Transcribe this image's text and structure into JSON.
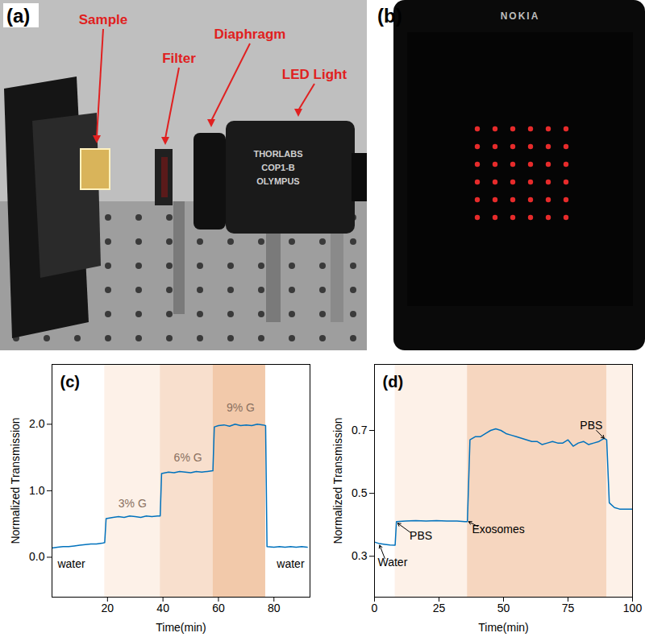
{
  "photos": [
    {
      "label": "(a)",
      "callouts": [
        "Sample",
        "Filter",
        "Diaphragm",
        "LED Light"
      ],
      "printed": [
        "THORLABS",
        "COP1-B",
        "OLYMPUS"
      ]
    },
    {
      "label": "(b)",
      "printed": [
        "NOKIA"
      ]
    }
  ],
  "chart_data": [
    {
      "type": "line",
      "title": "(c)",
      "x_label": "Time(min)",
      "y_label": "Normalized Transmission",
      "color": "#0072bd",
      "xlim": [
        0,
        93
      ],
      "xticks": [
        20,
        40,
        60,
        80
      ],
      "ylim": [
        -0.6,
        2.9
      ],
      "yticks": [
        0,
        1,
        2
      ],
      "regions": [
        {
          "x0": 19,
          "x1": 39,
          "color": "#fdf1e8"
        },
        {
          "x0": 39,
          "x1": 58,
          "color": "#f8dfcd"
        },
        {
          "x0": 58,
          "x1": 77,
          "color": "#f2c9aa"
        }
      ],
      "annotations": [
        {
          "text": "water",
          "x": 7,
          "y": -0.1
        },
        {
          "text": "3% G",
          "x": 29,
          "y": 0.8
        },
        {
          "text": "6% G",
          "x": 49,
          "y": 1.5
        },
        {
          "text": "9% G",
          "x": 68,
          "y": 2.25
        },
        {
          "text": "water",
          "x": 86,
          "y": -0.1
        }
      ],
      "x": [
        0,
        2,
        4,
        6,
        8,
        10,
        12,
        14,
        16,
        18,
        19,
        19.5,
        22,
        24,
        26,
        28,
        30,
        32,
        34,
        36,
        38,
        39,
        39.5,
        42,
        44,
        46,
        48,
        50,
        52,
        54,
        56,
        58,
        58.5,
        60,
        62,
        64,
        66,
        68,
        70,
        72,
        74,
        76,
        77,
        77.5,
        80,
        82,
        84,
        86,
        88,
        90,
        92
      ],
      "values": [
        0.14,
        0.15,
        0.16,
        0.16,
        0.17,
        0.18,
        0.19,
        0.2,
        0.2,
        0.21,
        0.22,
        0.58,
        0.6,
        0.61,
        0.6,
        0.62,
        0.61,
        0.6,
        0.62,
        0.61,
        0.62,
        0.62,
        1.26,
        1.28,
        1.27,
        1.29,
        1.28,
        1.27,
        1.29,
        1.28,
        1.29,
        1.3,
        1.96,
        1.98,
        1.99,
        1.97,
        2.0,
        1.98,
        1.99,
        1.98,
        2.0,
        1.99,
        1.98,
        0.16,
        0.15,
        0.16,
        0.15,
        0.16,
        0.15,
        0.16,
        0.15
      ]
    },
    {
      "type": "line",
      "title": "(d)",
      "x_label": "Time(min)",
      "y_label": "Normalized Transmission",
      "color": "#0072bd",
      "xlim": [
        0,
        100
      ],
      "xticks": [
        0,
        25,
        50,
        75,
        100
      ],
      "ylim": [
        0.17,
        0.91
      ],
      "yticks": [
        0.3,
        0.5,
        0.7
      ],
      "regions": [
        {
          "x0": 8,
          "x1": 36,
          "color": "#fdf1e8"
        },
        {
          "x0": 36,
          "x1": 90,
          "color": "#f6d6bf"
        },
        {
          "x0": 90,
          "x1": 100,
          "color": "#fdf1e8"
        }
      ],
      "annotations": [
        {
          "text": "Water",
          "x": 7,
          "y": 0.28,
          "arrow": {
            "x1": 4,
            "y1": 0.293,
            "x2": 2,
            "y2": 0.335
          }
        },
        {
          "text": "PBS",
          "x": 18,
          "y": 0.365,
          "arrow": {
            "x1": 14,
            "y1": 0.375,
            "x2": 9,
            "y2": 0.405
          }
        },
        {
          "text": "Exosomes",
          "x": 48,
          "y": 0.385,
          "arrow": {
            "x1": 40,
            "y1": 0.395,
            "x2": 36.5,
            "y2": 0.41
          }
        },
        {
          "text": "PBS",
          "x": 84,
          "y": 0.715,
          "arrow": {
            "x1": 86,
            "y1": 0.7,
            "x2": 89,
            "y2": 0.675
          }
        }
      ],
      "x": [
        0,
        2,
        4,
        6,
        8,
        8.5,
        12,
        16,
        20,
        24,
        28,
        32,
        35,
        36,
        37,
        39,
        41,
        43,
        45,
        47,
        49,
        51,
        53,
        55,
        57,
        59,
        61,
        63,
        65,
        67,
        69,
        71,
        73,
        75,
        77,
        79,
        81,
        83,
        85,
        87,
        89,
        90,
        91,
        93,
        95,
        97,
        100
      ],
      "values": [
        0.345,
        0.34,
        0.338,
        0.336,
        0.335,
        0.41,
        0.412,
        0.413,
        0.412,
        0.413,
        0.412,
        0.412,
        0.41,
        0.41,
        0.67,
        0.68,
        0.68,
        0.69,
        0.7,
        0.705,
        0.7,
        0.69,
        0.685,
        0.68,
        0.675,
        0.67,
        0.665,
        0.665,
        0.655,
        0.66,
        0.665,
        0.66,
        0.66,
        0.67,
        0.65,
        0.66,
        0.665,
        0.655,
        0.66,
        0.665,
        0.675,
        0.67,
        0.47,
        0.455,
        0.45,
        0.45,
        0.45
      ]
    }
  ]
}
